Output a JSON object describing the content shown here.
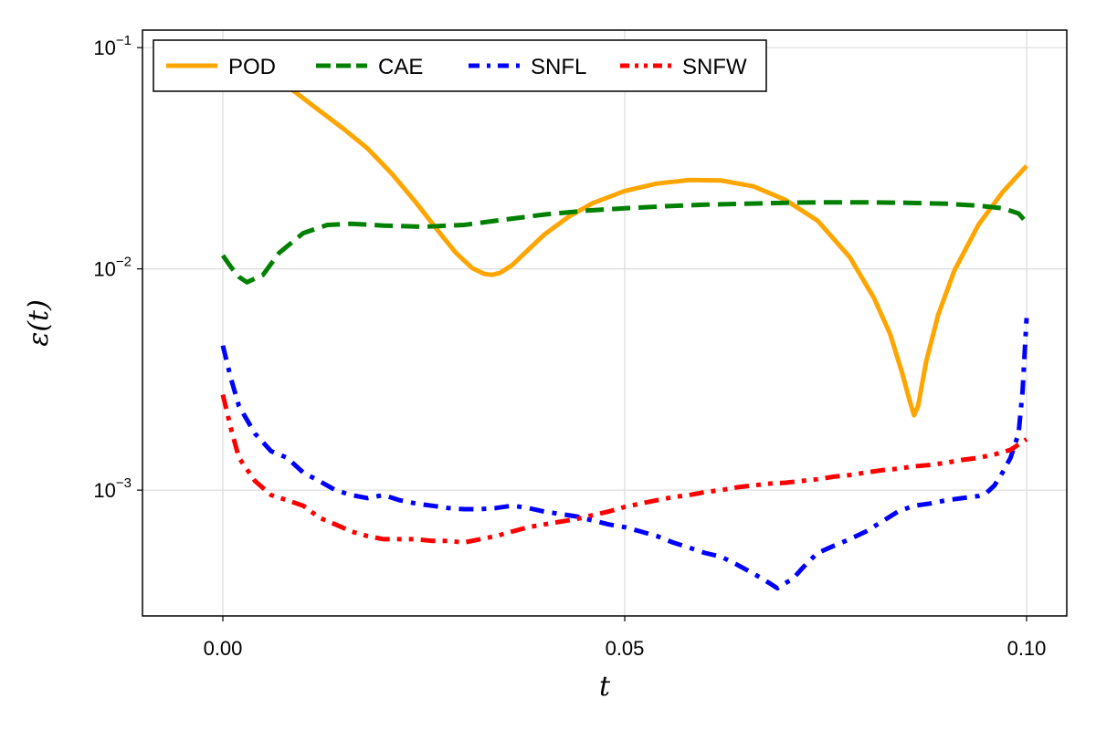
{
  "chart_data": {
    "type": "line",
    "title": "",
    "xlabel": "t",
    "ylabel": "ε(t)",
    "xlim": [
      -0.01,
      0.105
    ],
    "ylim": [
      0.00027,
      0.12
    ],
    "yscale": "log",
    "grid": true,
    "legend_position": "top-left",
    "x_ticks": [
      {
        "value": 0.0,
        "label": "0.00"
      },
      {
        "value": 0.05,
        "label": "0.05"
      },
      {
        "value": 0.1,
        "label": "0.10"
      }
    ],
    "y_ticks": [
      {
        "value": 0.1,
        "base": "10",
        "exp": "−1"
      },
      {
        "value": 0.01,
        "base": "10",
        "exp": "−2"
      },
      {
        "value": 0.001,
        "base": "10",
        "exp": "−3"
      }
    ],
    "series": [
      {
        "name": "POD",
        "color": "#FFA500",
        "dash": "solid",
        "x": [
          0.003,
          0.006,
          0.009,
          0.012,
          0.015,
          0.018,
          0.021,
          0.024,
          0.027,
          0.029,
          0.031,
          0.0325,
          0.0335,
          0.0345,
          0.036,
          0.038,
          0.04,
          0.043,
          0.046,
          0.05,
          0.054,
          0.058,
          0.062,
          0.066,
          0.07,
          0.074,
          0.078,
          0.081,
          0.083,
          0.0845,
          0.0855,
          0.086,
          0.0865,
          0.0875,
          0.089,
          0.091,
          0.094,
          0.097,
          0.1
        ],
        "y": [
          0.09,
          0.075,
          0.063,
          0.052,
          0.043,
          0.035,
          0.027,
          0.02,
          0.0145,
          0.0118,
          0.0101,
          0.0095,
          0.0094,
          0.0096,
          0.0104,
          0.0122,
          0.0143,
          0.0172,
          0.0198,
          0.0225,
          0.0243,
          0.0252,
          0.0251,
          0.0236,
          0.0205,
          0.0165,
          0.0113,
          0.0074,
          0.0051,
          0.0034,
          0.0025,
          0.00218,
          0.0024,
          0.0038,
          0.0062,
          0.0098,
          0.0158,
          0.0222,
          0.0292
        ]
      },
      {
        "name": "CAE",
        "color": "#008000",
        "dash": "dashed",
        "x": [
          0.0,
          0.001,
          0.002,
          0.003,
          0.005,
          0.007,
          0.01,
          0.013,
          0.016,
          0.02,
          0.025,
          0.03,
          0.035,
          0.04,
          0.045,
          0.05,
          0.055,
          0.06,
          0.065,
          0.07,
          0.075,
          0.08,
          0.085,
          0.09,
          0.094,
          0.097,
          0.099,
          0.1
        ],
        "y": [
          0.0115,
          0.0102,
          0.0092,
          0.0087,
          0.0094,
          0.0118,
          0.0145,
          0.0158,
          0.016,
          0.0157,
          0.0155,
          0.0158,
          0.0167,
          0.0176,
          0.0183,
          0.0188,
          0.0192,
          0.0195,
          0.0197,
          0.0199,
          0.02,
          0.02,
          0.0199,
          0.0197,
          0.0193,
          0.0188,
          0.0178,
          0.0162
        ]
      },
      {
        "name": "SNFL",
        "color": "#0000FF",
        "dash": "dashdot",
        "x": [
          0.0,
          0.001,
          0.002,
          0.004,
          0.006,
          0.008,
          0.01,
          0.012,
          0.014,
          0.016,
          0.018,
          0.02,
          0.022,
          0.024,
          0.026,
          0.028,
          0.03,
          0.032,
          0.034,
          0.036,
          0.038,
          0.04,
          0.042,
          0.044,
          0.046,
          0.048,
          0.05,
          0.052,
          0.054,
          0.056,
          0.058,
          0.06,
          0.062,
          0.064,
          0.066,
          0.067,
          0.068,
          0.069,
          0.07,
          0.071,
          0.072,
          0.073,
          0.074,
          0.076,
          0.078,
          0.08,
          0.082,
          0.084,
          0.086,
          0.088,
          0.09,
          0.092,
          0.094,
          0.095,
          0.096,
          0.097,
          0.098,
          0.099,
          0.0995,
          0.1
        ],
        "y": [
          0.0045,
          0.0032,
          0.0024,
          0.0018,
          0.0015,
          0.0014,
          0.0012,
          0.0011,
          0.001,
          0.00095,
          0.00092,
          0.00095,
          0.0009,
          0.00087,
          0.00085,
          0.00083,
          0.00082,
          0.00082,
          0.00083,
          0.00085,
          0.00083,
          0.0008,
          0.00078,
          0.00076,
          0.00073,
          0.0007,
          0.00068,
          0.00065,
          0.00062,
          0.00058,
          0.00055,
          0.00052,
          0.0005,
          0.00046,
          0.00042,
          0.0004,
          0.00038,
          0.00036,
          0.00038,
          0.0004,
          0.00044,
          0.00048,
          0.00052,
          0.00056,
          0.0006,
          0.00065,
          0.00072,
          0.0008,
          0.00085,
          0.00087,
          0.0009,
          0.00092,
          0.00094,
          0.00097,
          0.00105,
          0.0012,
          0.0014,
          0.0018,
          0.0028,
          0.006
        ]
      },
      {
        "name": "SNFW",
        "color": "#FF0000",
        "dash": "dashdotdot",
        "x": [
          0.0,
          0.001,
          0.002,
          0.004,
          0.006,
          0.008,
          0.01,
          0.012,
          0.014,
          0.016,
          0.018,
          0.02,
          0.022,
          0.024,
          0.026,
          0.028,
          0.03,
          0.032,
          0.034,
          0.036,
          0.038,
          0.04,
          0.042,
          0.044,
          0.046,
          0.048,
          0.05,
          0.052,
          0.054,
          0.056,
          0.058,
          0.06,
          0.062,
          0.064,
          0.066,
          0.068,
          0.07,
          0.072,
          0.074,
          0.076,
          0.078,
          0.08,
          0.082,
          0.084,
          0.086,
          0.088,
          0.09,
          0.092,
          0.094,
          0.096,
          0.098,
          0.1
        ],
        "y": [
          0.0027,
          0.0019,
          0.0014,
          0.0011,
          0.00095,
          0.0009,
          0.00085,
          0.00075,
          0.0007,
          0.00065,
          0.00062,
          0.0006,
          0.0006,
          0.0006,
          0.00059,
          0.00059,
          0.00058,
          0.0006,
          0.00062,
          0.00065,
          0.00068,
          0.0007,
          0.00072,
          0.00074,
          0.00077,
          0.0008,
          0.00084,
          0.00087,
          0.0009,
          0.00093,
          0.00095,
          0.00098,
          0.001,
          0.00103,
          0.00105,
          0.00107,
          0.00108,
          0.0011,
          0.00112,
          0.00115,
          0.00117,
          0.0012,
          0.00123,
          0.00125,
          0.00128,
          0.0013,
          0.00133,
          0.00137,
          0.0014,
          0.00145,
          0.00152,
          0.0017
        ]
      }
    ]
  }
}
